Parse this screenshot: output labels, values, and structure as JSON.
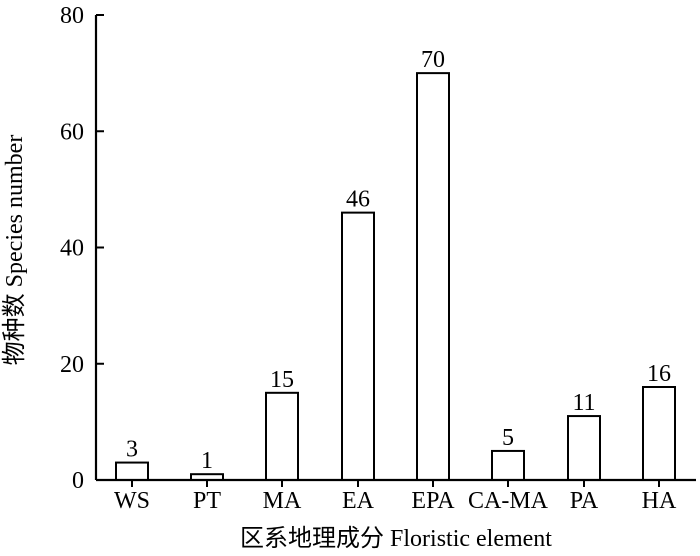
{
  "chart_data": {
    "type": "bar",
    "categories": [
      "WS",
      "PT",
      "MA",
      "EA",
      "EPA",
      "CA-MA",
      "PA",
      "HA"
    ],
    "values": [
      3,
      1,
      15,
      46,
      70,
      5,
      11,
      16
    ],
    "value_labels": [
      "3",
      "1",
      "15",
      "46",
      "70",
      "5",
      "11",
      "16"
    ],
    "xlabel": "区系地理成分 Floristic element",
    "ylabel": "物种数 Species number",
    "ylim": [
      0,
      80
    ],
    "yticks": [
      "0",
      "20",
      "40",
      "60",
      "80"
    ],
    "grid": false,
    "legend": "none",
    "colors": {
      "bar_fill": "#ffffff",
      "bar_stroke": "#000000"
    }
  }
}
